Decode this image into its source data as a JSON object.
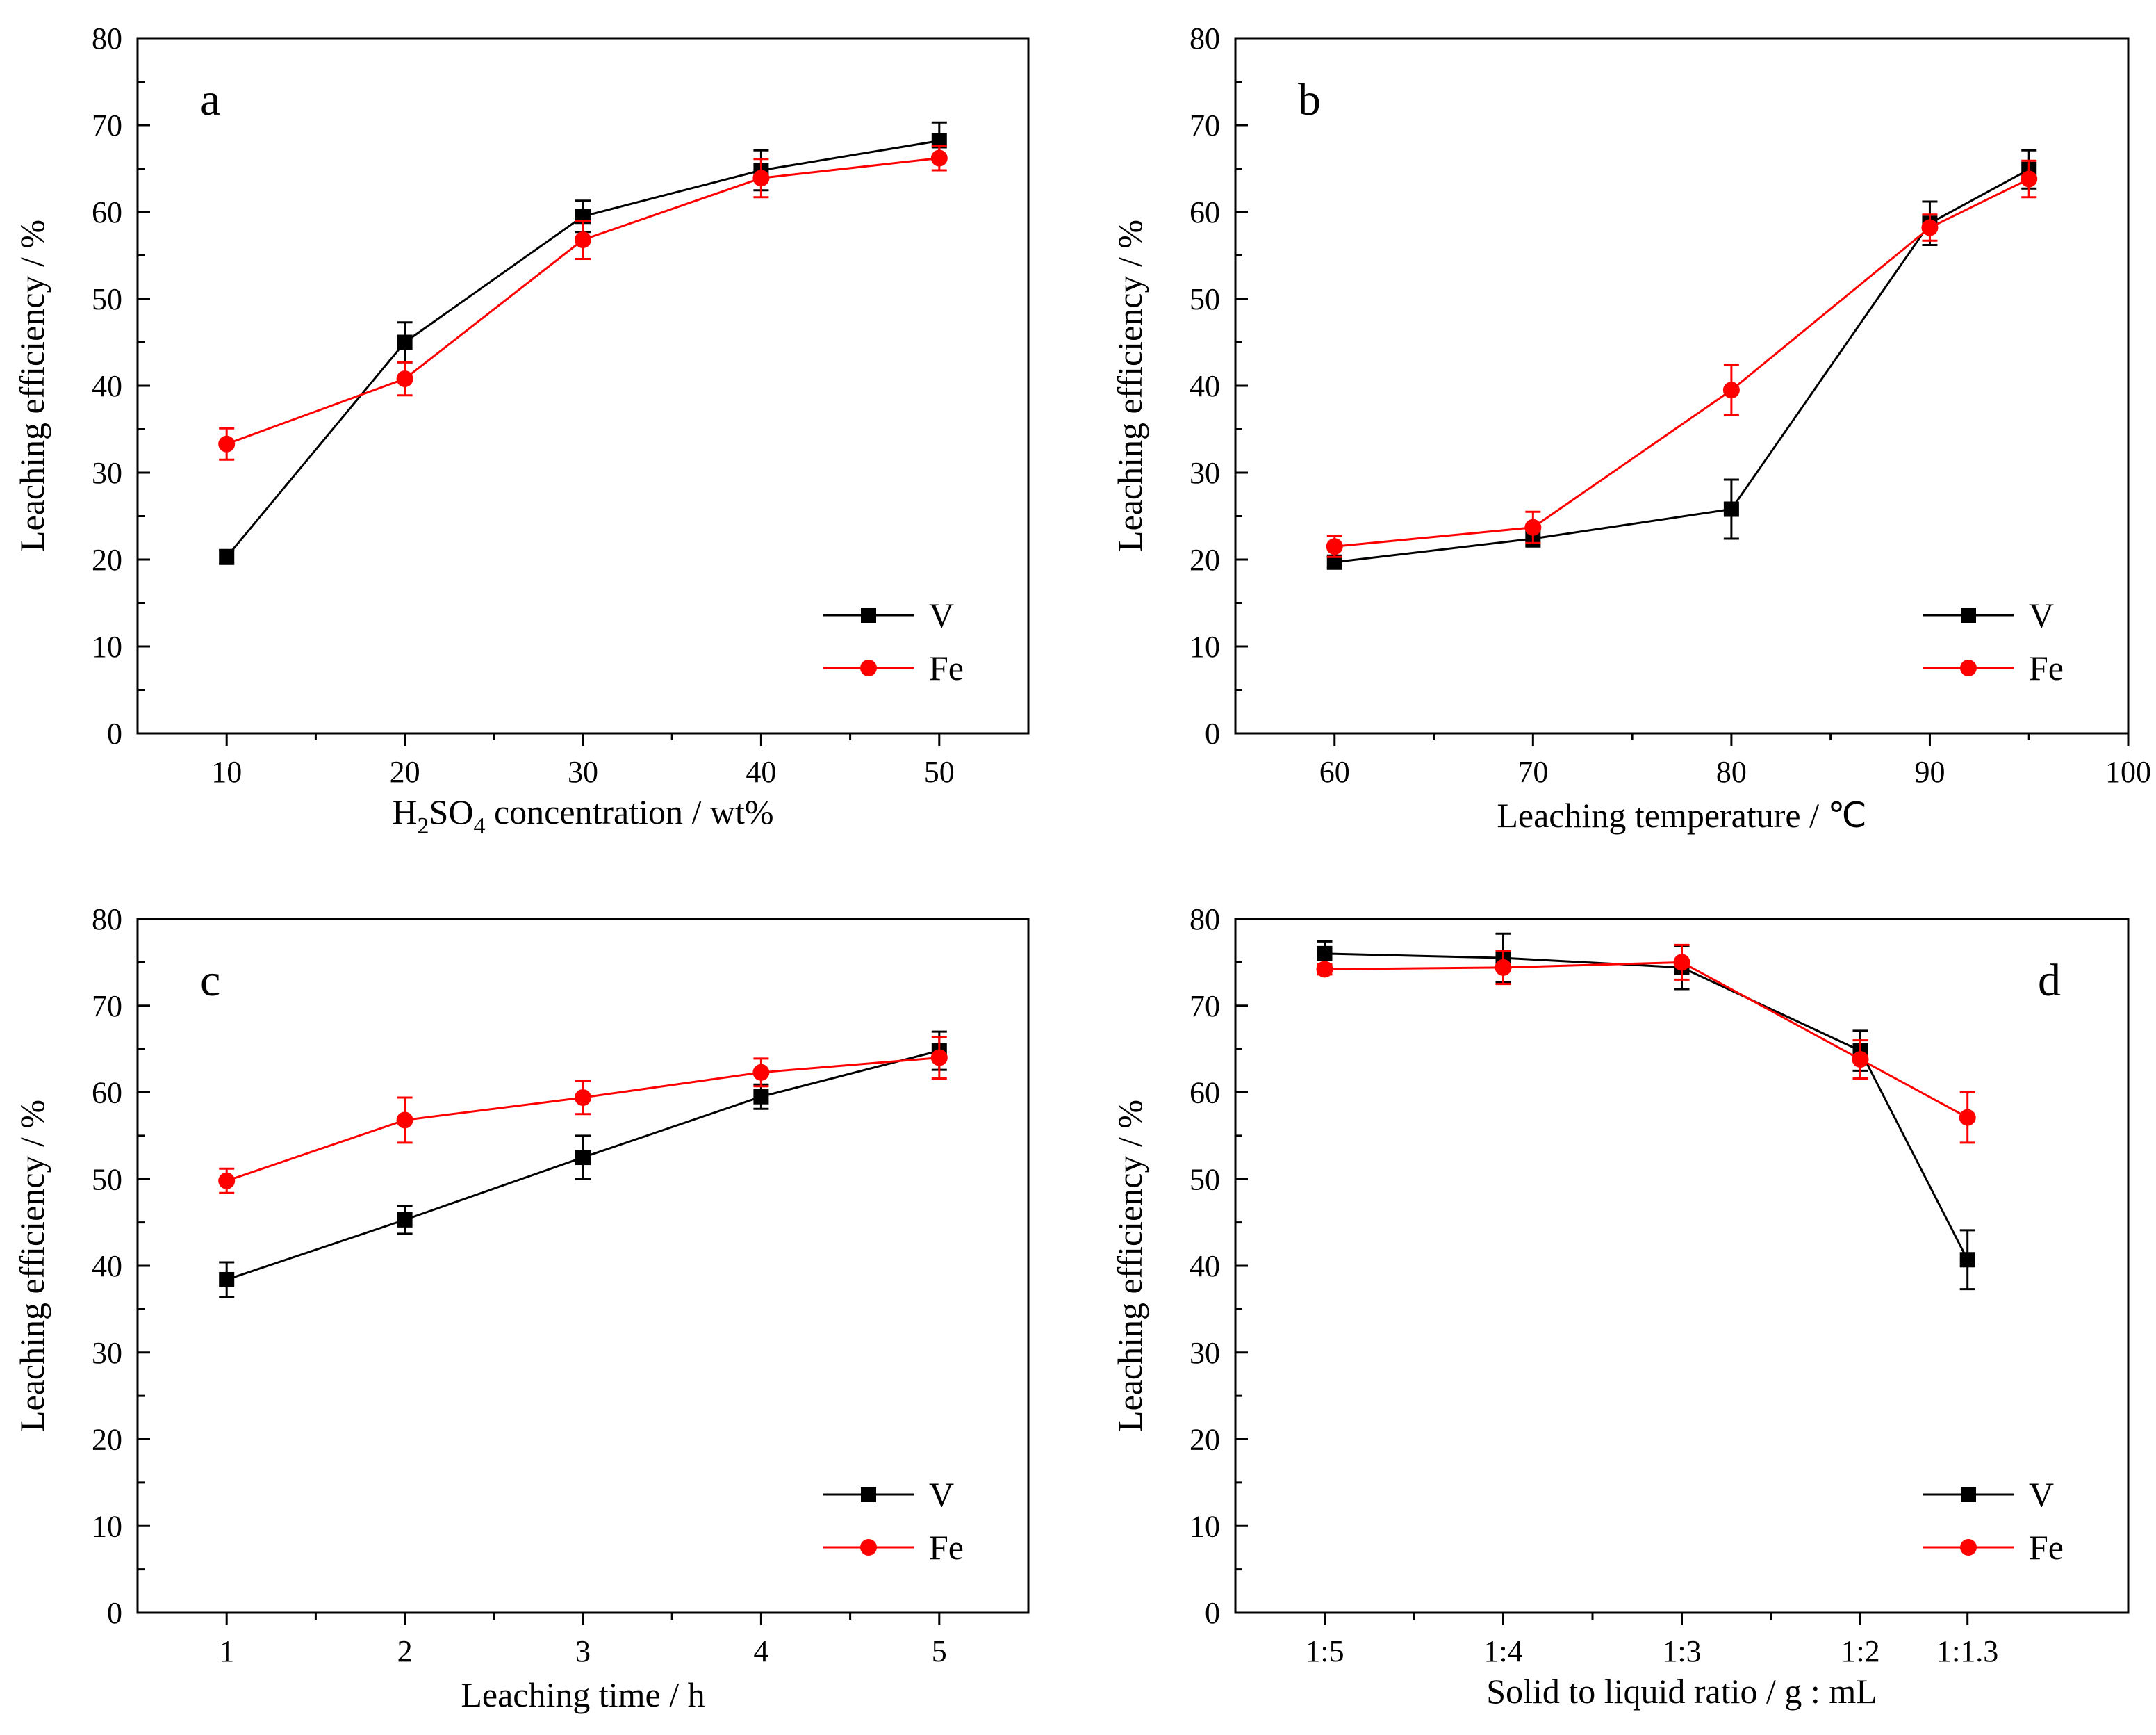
{
  "chart_data": [
    {
      "type": "line",
      "panel_label": "a",
      "xlabel_parts": [
        {
          "text": "H",
          "sub": false
        },
        {
          "text": "2",
          "sub": true
        },
        {
          "text": "SO",
          "sub": false
        },
        {
          "text": "4",
          "sub": true
        },
        {
          "text": " concentration / wt%",
          "sub": false
        }
      ],
      "ylabel": "Leaching efficiency / %",
      "xlim": [
        5,
        55
      ],
      "ylim": [
        0,
        80
      ],
      "xticks": [
        10,
        20,
        30,
        40,
        50
      ],
      "xtick_labels": [
        "10",
        "20",
        "30",
        "40",
        "50"
      ],
      "xminor": [
        15,
        25,
        35,
        45
      ],
      "yticks": [
        0,
        10,
        20,
        30,
        40,
        50,
        60,
        70,
        80
      ],
      "legend_position": "bottom-right",
      "series": [
        {
          "name": "V",
          "color": "#000000",
          "marker": "square",
          "x": [
            10,
            20,
            30,
            40,
            50
          ],
          "y": [
            20.3,
            45.0,
            59.5,
            64.8,
            68.2
          ],
          "err": [
            0.8,
            2.3,
            1.8,
            2.3,
            2.1
          ]
        },
        {
          "name": "Fe",
          "color": "#ff0000",
          "marker": "circle",
          "x": [
            10,
            20,
            30,
            40,
            50
          ],
          "y": [
            33.3,
            40.8,
            56.8,
            63.9,
            66.2
          ],
          "err": [
            1.8,
            1.9,
            2.2,
            2.2,
            1.4
          ]
        }
      ]
    },
    {
      "type": "line",
      "panel_label": "b",
      "xlabel_parts": [
        {
          "text": "Leaching temperature / ℃",
          "sub": false
        }
      ],
      "ylabel": "Leaching efficiency / %",
      "xlim": [
        55,
        100
      ],
      "ylim": [
        0,
        80
      ],
      "xticks": [
        60,
        70,
        80,
        90,
        100
      ],
      "xtick_labels": [
        "60",
        "70",
        "80",
        "90",
        "100"
      ],
      "xminor": [
        65,
        75,
        85,
        95
      ],
      "yticks": [
        0,
        10,
        20,
        30,
        40,
        50,
        60,
        70,
        80
      ],
      "legend_position": "bottom-right",
      "series": [
        {
          "name": "V",
          "color": "#000000",
          "marker": "square",
          "x": [
            60,
            70,
            80,
            90,
            95
          ],
          "y": [
            19.7,
            22.4,
            25.8,
            58.7,
            64.9
          ],
          "err": [
            0.6,
            0.9,
            3.4,
            2.5,
            2.2
          ]
        },
        {
          "name": "Fe",
          "color": "#ff0000",
          "marker": "circle",
          "x": [
            60,
            70,
            80,
            90,
            95
          ],
          "y": [
            21.5,
            23.7,
            39.5,
            58.2,
            63.8
          ],
          "err": [
            1.2,
            1.8,
            2.9,
            1.5,
            2.1
          ]
        }
      ]
    },
    {
      "type": "line",
      "panel_label": "c",
      "xlabel_parts": [
        {
          "text": "Leaching time / h",
          "sub": false
        }
      ],
      "ylabel": "Leaching efficiency / %",
      "xlim": [
        0.5,
        5.5
      ],
      "ylim": [
        0,
        80
      ],
      "xticks": [
        1,
        2,
        3,
        4,
        5
      ],
      "xtick_labels": [
        "1",
        "2",
        "3",
        "4",
        "5"
      ],
      "xminor": [
        1.5,
        2.5,
        3.5,
        4.5
      ],
      "yticks": [
        0,
        10,
        20,
        30,
        40,
        50,
        60,
        70,
        80
      ],
      "legend_position": "bottom-right",
      "series": [
        {
          "name": "V",
          "color": "#000000",
          "marker": "square",
          "x": [
            1,
            2,
            3,
            4,
            5
          ],
          "y": [
            38.4,
            45.3,
            52.5,
            59.5,
            64.8
          ],
          "err": [
            2.0,
            1.6,
            2.5,
            1.4,
            2.2
          ]
        },
        {
          "name": "Fe",
          "color": "#ff0000",
          "marker": "circle",
          "x": [
            1,
            2,
            3,
            4,
            5
          ],
          "y": [
            49.8,
            56.8,
            59.4,
            62.3,
            64.0
          ],
          "err": [
            1.4,
            2.6,
            1.9,
            1.6,
            2.4
          ]
        }
      ]
    },
    {
      "type": "line",
      "panel_label": "d",
      "xlabel_parts": [
        {
          "text": "Solid to liquid ratio / g : mL",
          "sub": false
        }
      ],
      "ylabel": "Leaching efficiency / %",
      "xlim": [
        0.5,
        5.5
      ],
      "ylim": [
        0,
        80
      ],
      "xticks": [
        1,
        2,
        3,
        4,
        4.6
      ],
      "xtick_labels": [
        "1:5",
        "1:4",
        "1:3",
        "1:2",
        "1:1.3"
      ],
      "xminor": [
        1.5,
        2.5,
        3.5
      ],
      "yticks": [
        0,
        10,
        20,
        30,
        40,
        50,
        60,
        70,
        80
      ],
      "legend_position": "bottom-right",
      "series": [
        {
          "name": "V",
          "color": "#000000",
          "marker": "square",
          "x": [
            1,
            2,
            3,
            4,
            4.6
          ],
          "y": [
            76.0,
            75.5,
            74.4,
            64.8,
            40.7
          ],
          "err": [
            1.4,
            2.8,
            2.5,
            2.3,
            3.4
          ]
        },
        {
          "name": "Fe",
          "color": "#ff0000",
          "marker": "circle",
          "x": [
            1,
            2,
            3,
            4,
            4.6
          ],
          "y": [
            74.2,
            74.4,
            75.0,
            63.8,
            57.1
          ],
          "err": [
            0.6,
            1.9,
            2.0,
            2.2,
            2.9
          ]
        }
      ]
    }
  ]
}
